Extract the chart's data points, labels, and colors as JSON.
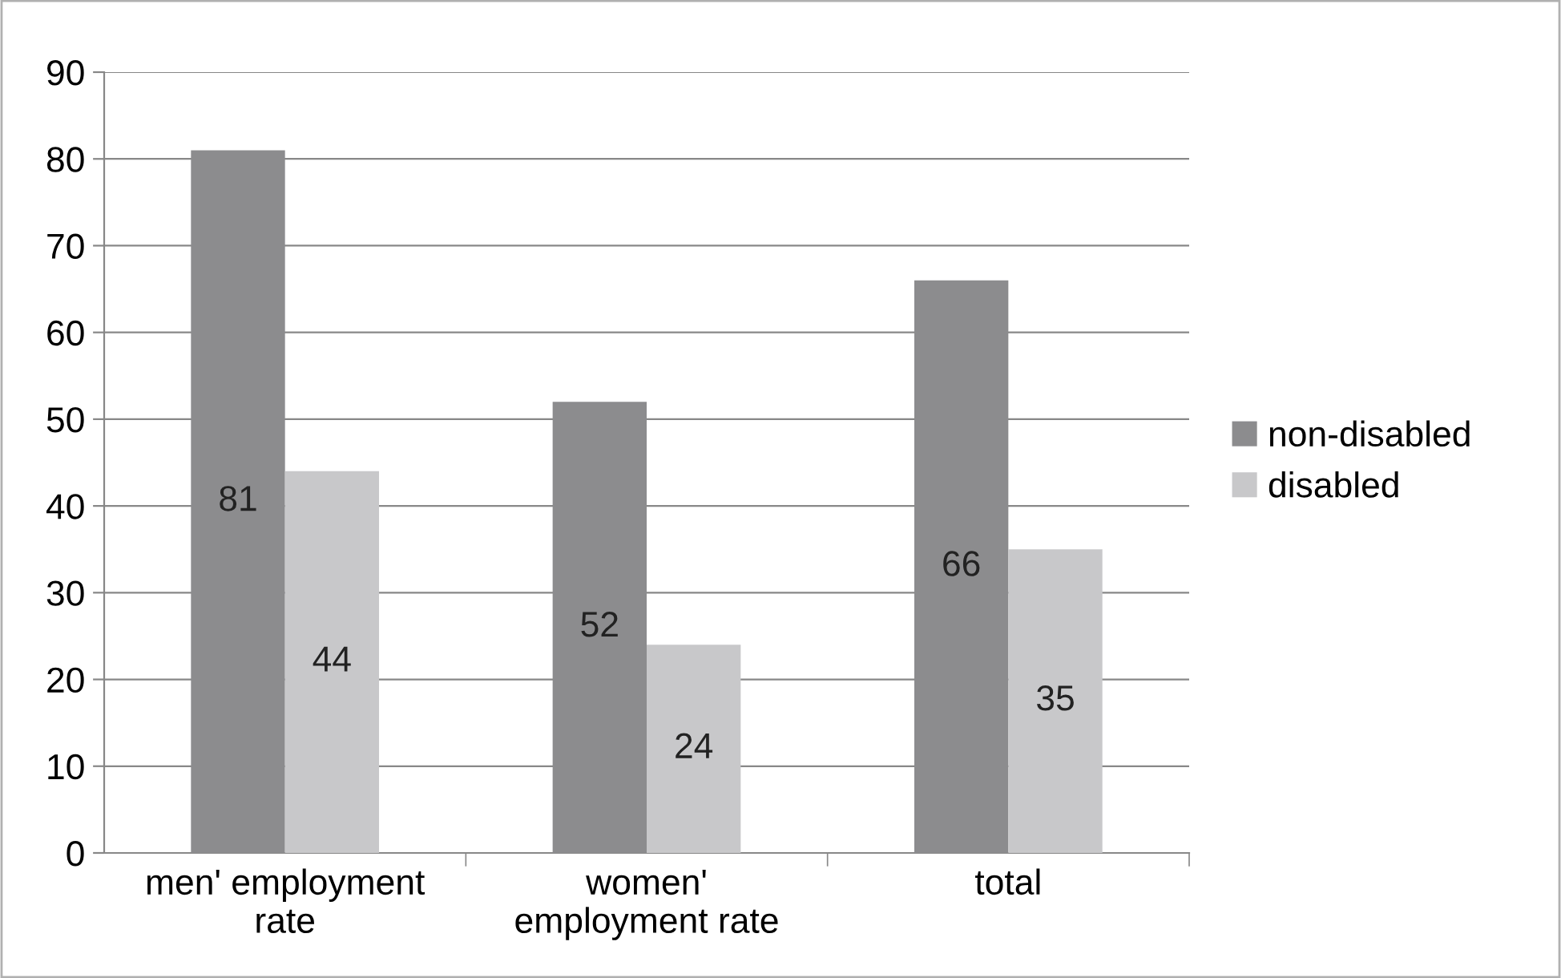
{
  "chart_data": {
    "type": "bar",
    "categories": [
      "men' employment rate",
      "women' employment rate",
      "total"
    ],
    "series": [
      {
        "name": "non-disabled",
        "color": "#8c8c8e",
        "values": [
          81,
          52,
          66
        ]
      },
      {
        "name": "disabled",
        "color": "#c8c8ca",
        "values": [
          44,
          24,
          35
        ]
      }
    ],
    "ylim": [
      0,
      90
    ],
    "yticks": [
      0,
      10,
      20,
      30,
      40,
      50,
      60,
      70,
      80,
      90
    ],
    "grid": "y",
    "legend": "right",
    "data_labels": true
  }
}
